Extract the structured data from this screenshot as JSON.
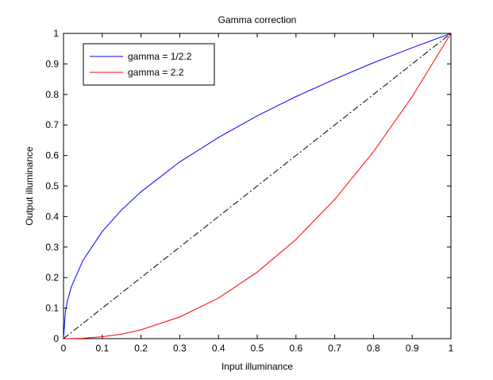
{
  "chart_data": {
    "type": "line",
    "title": "Gamma correction",
    "x_label": "Input illuminance",
    "y_label": "Output illuminance",
    "x": [
      0,
      0.005,
      0.01,
      0.02,
      0.05,
      0.1,
      0.15,
      0.2,
      0.3,
      0.4,
      0.5,
      0.6,
      0.7,
      0.8,
      0.9,
      1
    ],
    "series": [
      {
        "name": "gamma = 1/2.2",
        "color": "#0000ff",
        "linestyle": "solid",
        "values": [
          0,
          0.09,
          0.123,
          0.169,
          0.256,
          0.351,
          0.422,
          0.481,
          0.579,
          0.659,
          0.73,
          0.793,
          0.85,
          0.904,
          0.953,
          1
        ]
      },
      {
        "name": "gamma = 2.2",
        "color": "#ff0000",
        "linestyle": "solid",
        "values": [
          0,
          0,
          0,
          0.0002,
          0.0014,
          0.0063,
          0.015,
          0.029,
          0.071,
          0.133,
          0.218,
          0.325,
          0.456,
          0.612,
          0.793,
          1
        ]
      },
      {
        "color": "#000000",
        "linestyle": "dashdot",
        "values": [
          0,
          0.005,
          0.01,
          0.02,
          0.05,
          0.1,
          0.15,
          0.2,
          0.3,
          0.4,
          0.5,
          0.6,
          0.7,
          0.8,
          0.9,
          1
        ]
      }
    ],
    "xlim": [
      0,
      1
    ],
    "ylim": [
      0,
      1
    ],
    "xticks": [
      0,
      0.1,
      0.2,
      0.3,
      0.4,
      0.5,
      0.6,
      0.7,
      0.8,
      0.9,
      1
    ],
    "yticks": [
      0,
      0.1,
      0.2,
      0.3,
      0.4,
      0.5,
      0.6,
      0.7,
      0.8,
      0.9,
      1
    ],
    "legend": "upper-left"
  }
}
